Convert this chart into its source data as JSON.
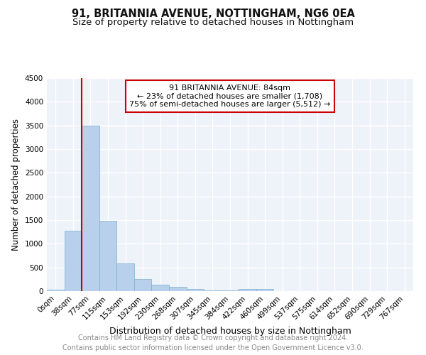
{
  "title": "91, BRITANNIA AVENUE, NOTTINGHAM, NG6 0EA",
  "subtitle": "Size of property relative to detached houses in Nottingham",
  "xlabel": "Distribution of detached houses by size in Nottingham",
  "ylabel": "Number of detached properties",
  "bar_color": "#b8d0eb",
  "bar_edge_color": "#7aafd4",
  "bin_labels": [
    "0sqm",
    "38sqm",
    "77sqm",
    "115sqm",
    "153sqm",
    "192sqm",
    "230sqm",
    "268sqm",
    "307sqm",
    "345sqm",
    "384sqm",
    "422sqm",
    "460sqm",
    "499sqm",
    "537sqm",
    "575sqm",
    "614sqm",
    "652sqm",
    "690sqm",
    "729sqm",
    "767sqm"
  ],
  "bar_heights": [
    30,
    1270,
    3500,
    1480,
    580,
    250,
    140,
    85,
    45,
    20,
    10,
    40,
    40,
    0,
    0,
    0,
    0,
    0,
    0,
    0,
    0
  ],
  "ylim": [
    0,
    4500
  ],
  "yticks": [
    0,
    500,
    1000,
    1500,
    2000,
    2500,
    3000,
    3500,
    4000,
    4500
  ],
  "property_line_color": "#cc0000",
  "annotation_text": "91 BRITANNIA AVENUE: 84sqm\n← 23% of detached houses are smaller (1,708)\n75% of semi-detached houses are larger (5,512) →",
  "annotation_box_color": "#ffffff",
  "annotation_border_color": "#cc0000",
  "footer_line1": "Contains HM Land Registry data © Crown copyright and database right 2024.",
  "footer_line2": "Contains public sector information licensed under the Open Government Licence v3.0.",
  "background_color": "#eef2f9",
  "grid_color": "#ffffff",
  "title_fontsize": 10.5,
  "subtitle_fontsize": 9.5,
  "ylabel_fontsize": 8.5,
  "xlabel_fontsize": 9,
  "tick_fontsize": 7.5,
  "annotation_fontsize": 8,
  "footer_fontsize": 7
}
